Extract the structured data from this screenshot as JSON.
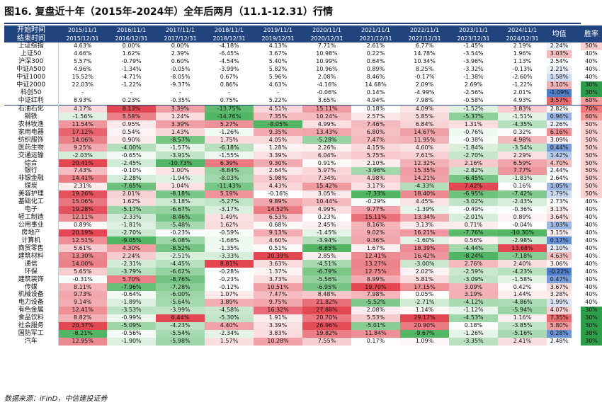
{
  "title": "图16. 复盘近十年（2015年-2024年）全年后两月（11.1-12.31）行情",
  "source": "数据来源：iFinD，中信建投证券",
  "header": {
    "row_label_top": "开始时间",
    "row_label_bottom": "结束时间",
    "start_dates": [
      "2015/11/1",
      "2016/11/1",
      "2017/11/1",
      "2018/11/1",
      "2019/11/1",
      "2020/11/1",
      "2021/11/1",
      "2022/11/1",
      "2023/11/1",
      "2024/11/1"
    ],
    "end_dates": [
      "2015/12/31",
      "2016/12/31",
      "2017/12/31",
      "2018/12/31",
      "2019/12/31",
      "2020/12/31",
      "2021/12/31",
      "2022/12/31",
      "2023/12/31",
      "2024/12/31"
    ],
    "avg_label": "均值",
    "win_label": "胜率"
  },
  "index_rows": [
    {
      "name": "上证综指",
      "values": [
        "4.63%",
        "0.00%",
        "0.00%",
        "-4.18%",
        "4.13%",
        "7.71%",
        "2.61%",
        "6.77%",
        "-1.45%",
        "2.19%"
      ],
      "avg": "2.24%",
      "win": "50%"
    },
    {
      "name": "上证50",
      "values": [
        "4.66%",
        "1.62%",
        "2.39%",
        "-6.45%",
        "3.67%",
        "10.98%",
        "0.22%",
        "14.78%",
        "-3.54%",
        "1.96%"
      ],
      "avg": "3.03%",
      "win": "40%"
    },
    {
      "name": "沪深300",
      "values": [
        "5.57%",
        "-0.79%",
        "0.60%",
        "-4.54%",
        "5.40%",
        "10.99%",
        "0.64%",
        "10.34%",
        "-3.96%",
        "1.13%"
      ],
      "avg": "2.54%",
      "win": "40%"
    },
    {
      "name": "中证A500",
      "values": [
        "4.96%",
        "-1.34%",
        "-0.05%",
        "-3.99%",
        "5.82%",
        "10.96%",
        "0.89%",
        "8.25%",
        "-3.32%",
        "-0.13%"
      ],
      "avg": "2.21%",
      "win": "40%"
    },
    {
      "name": "中证1000",
      "values": [
        "15.52%",
        "-4.71%",
        "-8.05%",
        "0.67%",
        "5.96%",
        "2.08%",
        "8.46%",
        "-0.17%",
        "-1.38%",
        "-2.60%"
      ],
      "avg": "1.58%",
      "win": "40%"
    },
    {
      "name": "中证2000",
      "values": [
        "22.03%",
        "-1.22%",
        "-9.37%",
        "0.86%",
        "4.63%",
        "-4.16%",
        "14.68%",
        "2.09%",
        "2.69%",
        "-1.22%"
      ],
      "avg": "3.10%",
      "win": "30%"
    },
    {
      "name": "科创50",
      "values": [
        "-",
        "-",
        "-",
        "-",
        "-",
        "-0.06%",
        "0.14%",
        "-4.99%",
        "-2.56%",
        "2.01%"
      ],
      "avg": "-1.09%",
      "win": "30%"
    },
    {
      "name": "中证红利",
      "values": [
        "8.93%",
        "0.23%",
        "-0.35%",
        "0.75%",
        "5.22%",
        "3.65%",
        "4.94%",
        "7.98%",
        "-0.58%",
        "4.93%"
      ],
      "avg": "3.57%",
      "win": "60%"
    }
  ],
  "industry_rows": [
    {
      "name": "石油石化",
      "values": [
        "4.17%",
        "8.13%",
        "3.39%",
        "-13.75%",
        "4.51%",
        "15.11%",
        "0.18%",
        "4.09%",
        "-1.52%",
        "3.83%"
      ],
      "avg": "2.82%",
      "win": "70%"
    },
    {
      "name": "钢铁",
      "values": [
        "-1.56%",
        "5.58%",
        "1.24%",
        "-14.76%",
        "7.35%",
        "10.24%",
        "2.57%",
        "5.85%",
        "-5.37%",
        "-1.51%"
      ],
      "avg": "0.96%",
      "win": "60%"
    },
    {
      "name": "农林牧渔",
      "values": [
        "11.54%",
        "0.95%",
        "3.39%",
        "5.27%",
        "-8.05%",
        "4.99%",
        "7.46%",
        "6.84%",
        "1.31%",
        "-4.35%"
      ],
      "avg": "2.26%",
      "win": "50%"
    },
    {
      "name": "家用电器",
      "values": [
        "17.12%",
        "0.54%",
        "1.43%",
        "-1.26%",
        "9.35%",
        "13.43%",
        "6.80%",
        "14.67%",
        "-0.76%",
        "0.32%"
      ],
      "avg": "6.16%",
      "win": "50%"
    },
    {
      "name": "纺织服饰",
      "values": [
        "14.06%",
        "0.90%",
        "-8.57%",
        "1.75%",
        "4.05%",
        "-5.28%",
        "7.47%",
        "11.95%",
        "-0.38%",
        "4.98%"
      ],
      "avg": "3.09%",
      "win": "50%"
    },
    {
      "name": "医药生物",
      "values": [
        "9.25%",
        "-4.00%",
        "-1.57%",
        "-6.18%",
        "1.28%",
        "2.26%",
        "4.15%",
        "4.60%",
        "-1.84%",
        "-3.54%"
      ],
      "avg": "0.44%",
      "win": "50%"
    },
    {
      "name": "交通运输",
      "values": [
        "-2.03%",
        "-0.65%",
        "-3.91%",
        "-1.55%",
        "3.39%",
        "6.04%",
        "5.75%",
        "7.61%",
        "-2.70%",
        "2.29%"
      ],
      "avg": "1.42%",
      "win": "50%"
    },
    {
      "name": "综合",
      "values": [
        "20.41%",
        "-2.45%",
        "-10.73%",
        "6.39%",
        "9.30%",
        "0.91%",
        "2.10%",
        "12.32%",
        "2.16%",
        "6.59%"
      ],
      "avg": "4.70%",
      "win": "50%"
    },
    {
      "name": "银行",
      "values": [
        "7.43%",
        "-0.10%",
        "1.00%",
        "-8.84%",
        "2.64%",
        "5.97%",
        "-3.96%",
        "15.35%",
        "-2.82%",
        "7.77%"
      ],
      "avg": "2.44%",
      "win": "50%"
    },
    {
      "name": "非银金融",
      "values": [
        "14.41%",
        "-2.28%",
        "-1.94%",
        "-8.03%",
        "5.98%",
        "7.34%",
        "4.98%",
        "14.21%",
        "-6.45%",
        "-1.83%"
      ],
      "avg": "2.64%",
      "win": "50%"
    },
    {
      "name": "煤炭",
      "values": [
        "2.31%",
        "-7.65%",
        "1.04%",
        "-11.43%",
        "4.43%",
        "15.42%",
        "3.17%",
        "-4.33%",
        "7.42%",
        "0.16%"
      ],
      "avg": "1.05%",
      "win": "50%"
    },
    {
      "name": "美容护理",
      "values": [
        "19.26%",
        "2.01%",
        "-8.18%",
        "5.19%",
        "-0.16%",
        "3.05%",
        "-7.33%",
        "18.40%",
        "-6.95%",
        "-7.42%"
      ],
      "avg": "1.79%",
      "win": "50%"
    },
    {
      "name": "基础化工",
      "values": [
        "15.06%",
        "1.62%",
        "-3.18%",
        "-5.27%",
        "9.89%",
        "10.44%",
        "-0.29%",
        "4.45%",
        "-3.02%",
        "-2.43%"
      ],
      "avg": "2.73%",
      "win": "40%"
    },
    {
      "name": "电子",
      "values": [
        "19.28%",
        "-5.17%",
        "-6.67%",
        "-3.17%",
        "14.52%",
        "4.99%",
        "9.77%",
        "-1.39%",
        "-0.49%",
        "-0.36%"
      ],
      "avg": "3.13%",
      "win": "40%"
    },
    {
      "name": "轻工制造",
      "values": [
        "12.11%",
        "-2.33%",
        "-8.46%",
        "1.49%",
        "6.53%",
        "0.23%",
        "15.11%",
        "13.34%",
        "-2.01%",
        "0.89%"
      ],
      "avg": "3.64%",
      "win": "40%"
    },
    {
      "name": "公用事业",
      "values": [
        "0.89%",
        "-1.81%",
        "-5.48%",
        "1.62%",
        "0.68%",
        "2.45%",
        "8.16%",
        "3.13%",
        "0.71%",
        "-0.04%"
      ],
      "avg": "1.03%",
      "win": "40%"
    },
    {
      "name": "房地产",
      "values": [
        "20.19%",
        "-2.70%",
        "-0.23%",
        "-0.59%",
        "9.13%",
        "-1.45%",
        "9.02%",
        "16.21%",
        "-7.76%",
        "-10.30%"
      ],
      "avg": "3.15%",
      "win": "40%"
    },
    {
      "name": "计算机",
      "values": [
        "12.51%",
        "-9.05%",
        "-6.08%",
        "-1.66%",
        "4.60%",
        "-3.94%",
        "9.36%",
        "-1.60%",
        "0.56%",
        "-2.98%"
      ],
      "avg": "0.17%",
      "win": "40%"
    },
    {
      "name": "商贸零售",
      "values": [
        "5.61%",
        "4.30%",
        "-8.52%",
        "-1.35%",
        "0.51%",
        "-8.85%",
        "1.67%",
        "18.39%",
        "-4.44%",
        "13.68%"
      ],
      "avg": "2.10%",
      "win": "40%"
    },
    {
      "name": "建筑材料",
      "values": [
        "13.30%",
        "2.24%",
        "-2.51%",
        "-3.33%",
        "20.39%",
        "2.85%",
        "12.41%",
        "16.42%",
        "-8.24%",
        "-7.18%"
      ],
      "avg": "4.63%",
      "win": "40%"
    },
    {
      "name": "通信",
      "values": [
        "14.00%",
        "-2.31%",
        "-4.45%",
        "8.81%",
        "3.63%",
        "-4.51%",
        "13.27%",
        "-3.00%",
        "2.76%",
        "2.40%"
      ],
      "avg": "3.06%",
      "win": "40%"
    },
    {
      "name": "环保",
      "values": [
        "5.65%",
        "-3.79%",
        "-6.62%",
        "-0.28%",
        "1.37%",
        "-6.79%",
        "12.75%",
        "2.02%",
        "-2.59%",
        "-4.23%"
      ],
      "avg": "-0.22%",
      "win": "40%"
    },
    {
      "name": "建筑装饰",
      "values": [
        "-0.31%",
        "5.70%",
        "-8.76%",
        "-0.23%",
        "3.73%",
        "-5.56%",
        "8.99%",
        "5.81%",
        "-3.09%",
        "-1.58%"
      ],
      "avg": "0.47%",
      "win": "40%"
    },
    {
      "name": "传媒",
      "values": [
        "8.11%",
        "-7.96%",
        "-7.28%",
        "-0.12%",
        "10.51%",
        "-6.95%",
        "19.70%",
        "17.15%",
        "3.09%",
        "0.42%"
      ],
      "avg": "3.67%",
      "win": "40%"
    },
    {
      "name": "机械设备",
      "values": [
        "9.73%",
        "-0.64%",
        "-6.00%",
        "1.07%",
        "7.47%",
        "8.48%",
        "7.98%",
        "0.05%",
        "3.19%",
        "1.44%"
      ],
      "avg": "3.28%",
      "win": "40%"
    },
    {
      "name": "电力设备",
      "values": [
        "9.14%",
        "-1.89%",
        "-5.64%",
        "3.89%",
        "9.75%",
        "21.82%",
        "-5.52%",
        "-2.71%",
        "-4.12%",
        "-4.86%"
      ],
      "avg": "1.99%",
      "win": "40%"
    },
    {
      "name": "有色金属",
      "values": [
        "12.41%",
        "-3.53%",
        "-3.99%",
        "-4.58%",
        "16.32%",
        "27.88%",
        "2.08%",
        "1.14%",
        "-1.12%",
        "-5.94%"
      ],
      "avg": "4.07%",
      "win": "30%"
    },
    {
      "name": "食品饮料",
      "values": [
        "8.82%",
        "-0.99%",
        "6.44%",
        "-5.30%",
        "1.91%",
        "20.70%",
        "5.53%",
        "29.17%",
        "-4.53%",
        "1.16%"
      ],
      "avg": "7.35%",
      "win": "30%"
    },
    {
      "name": "社会服务",
      "values": [
        "20.37%",
        "-5.09%",
        "-4.23%",
        "4.40%",
        "3.39%",
        "26.96%",
        "-5.01%",
        "20.90%",
        "0.18%",
        "-3.85%"
      ],
      "avg": "5.80%",
      "win": "30%"
    },
    {
      "name": "国防军工",
      "values": [
        "-8.21%",
        "-0.56%",
        "-5.54%",
        "-2.34%",
        "3.83%",
        "19.82%",
        "11.84%",
        "-9.67%",
        "-1.26%",
        "-5.16%"
      ],
      "avg": "0.28%",
      "win": "30%"
    },
    {
      "name": "汽车",
      "values": [
        "12.95%",
        "-1.90%",
        "-5.98%",
        "1.57%",
        "10.28%",
        "7.55%",
        "0.17%",
        "1.09%",
        "-3.35%",
        "2.41%"
      ],
      "avg": "2.48%",
      "win": "30%"
    }
  ],
  "colors": {
    "header_bg": "#21447f",
    "positive": "#e0323f",
    "negative": "#3fae53",
    "avg_high": "#e05a5a",
    "avg_low": "#3a6fc4",
    "win_high": "#f07a7a",
    "win_low": "#2e9e4a"
  }
}
